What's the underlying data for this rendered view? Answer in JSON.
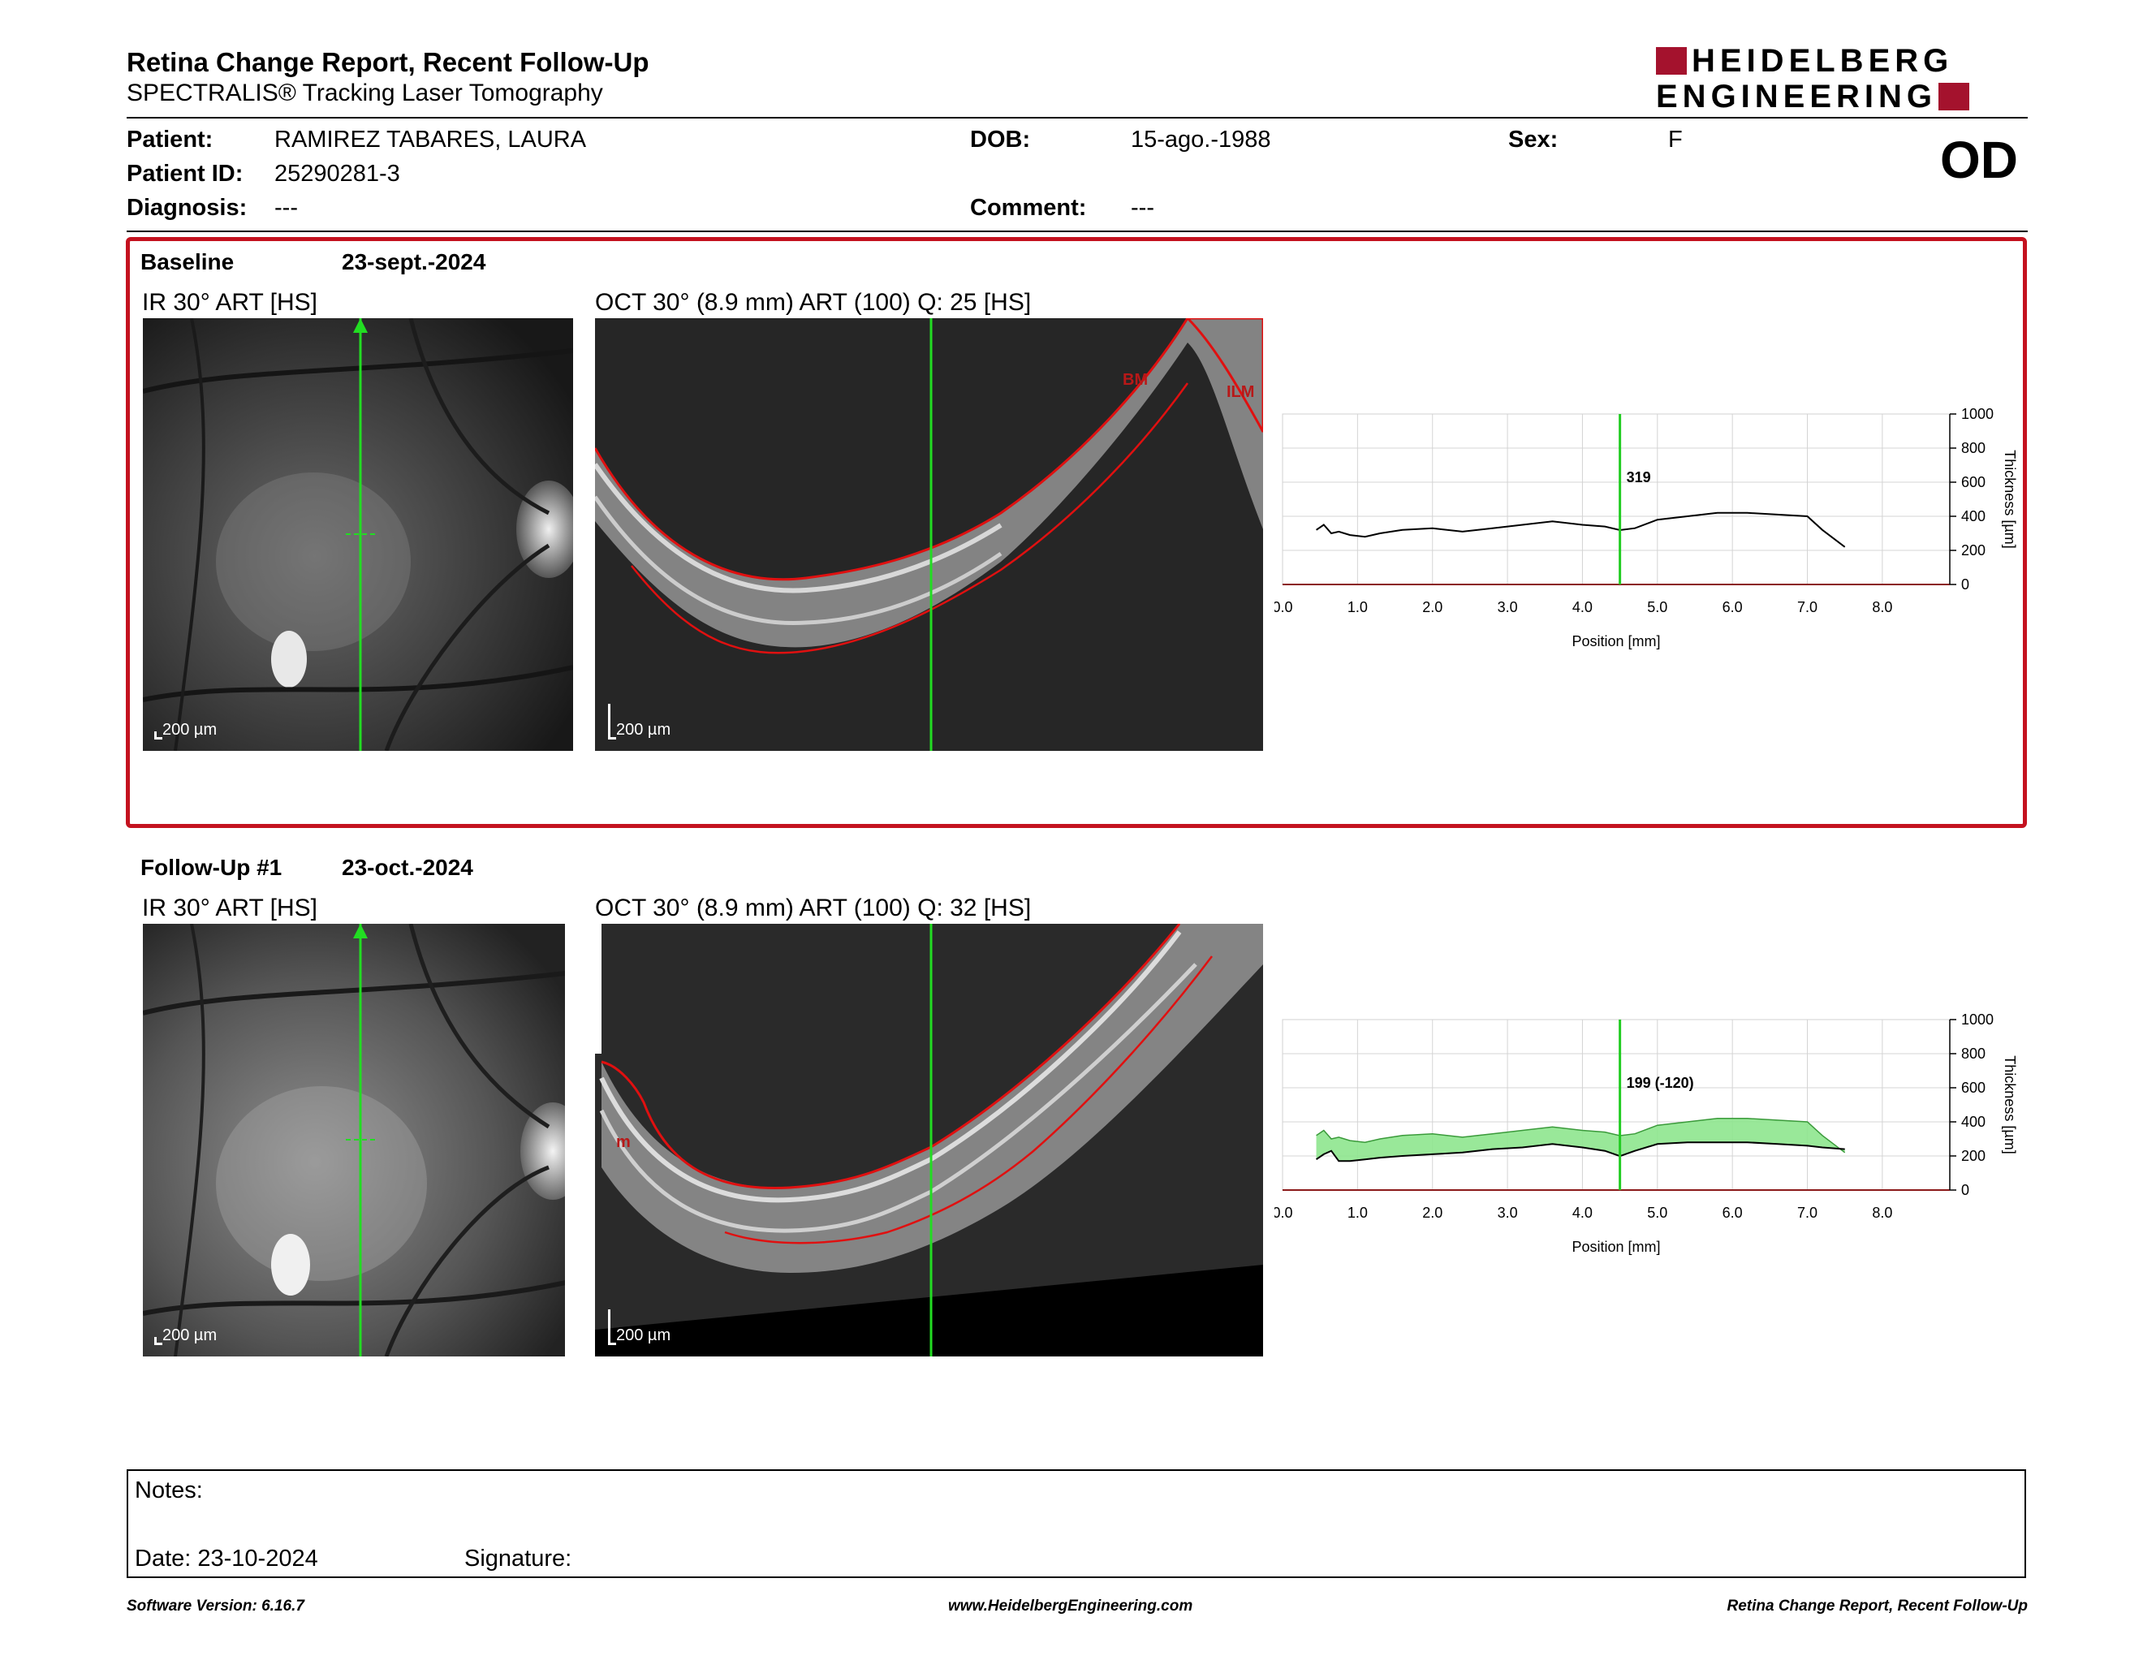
{
  "header": {
    "title": "Retina Change Report, Recent Follow-Up",
    "subtitle": "SPECTRALIS® Tracking Laser Tomography",
    "logo_line1": "HEIDELBERG",
    "logo_line2": "ENGINEERING",
    "eye": "OD"
  },
  "patient": {
    "patient_label": "Patient:",
    "patient_value": "RAMIREZ TABARES, LAURA",
    "id_label": "Patient ID:",
    "id_value": "25290281-3",
    "diagnosis_label": "Diagnosis:",
    "diagnosis_value": "---",
    "dob_label": "DOB:",
    "dob_value": "15-ago.-1988",
    "comment_label": "Comment:",
    "comment_value": "---",
    "sex_label": "Sex:",
    "sex_value": "F"
  },
  "baseline": {
    "label": "Baseline",
    "date": "23-sept.-2024",
    "ir_label": "IR 30° ART [HS]",
    "oct_label": "OCT 30° (8.9 mm) ART (100) Q: 25 [HS]",
    "scale_ir": "200 µm",
    "scale_oct": "200 µm",
    "layer_bm": "BM",
    "layer_ilm": "ILM"
  },
  "followup": {
    "label": "Follow-Up #1",
    "date": "23-oct.-2024",
    "ir_label": "IR 30° ART [HS]",
    "oct_label": "OCT 30° (8.9 mm) ART (100) Q: 32 [HS]",
    "scale_ir": "200 µm",
    "scale_oct": "200 µm",
    "layer_m": "m"
  },
  "chart_data": [
    {
      "type": "line",
      "xlabel": "Position [mm]",
      "ylabel": "Thickness [µm]",
      "xlim": [
        0,
        8.9
      ],
      "ylim": [
        0,
        1000
      ],
      "x_ticks": [
        "0.0",
        "1.0",
        "2.0",
        "3.0",
        "4.0",
        "5.0",
        "6.0",
        "7.0",
        "8.0"
      ],
      "y_ticks": [
        "0",
        "200",
        "400",
        "600",
        "800",
        "1000"
      ],
      "marker_x": 4.5,
      "marker_label": "319",
      "x": [
        0.45,
        0.55,
        0.65,
        0.75,
        0.9,
        1.1,
        1.3,
        1.6,
        2.0,
        2.4,
        2.8,
        3.2,
        3.6,
        4.0,
        4.3,
        4.5,
        4.7,
        5.0,
        5.4,
        5.8,
        6.2,
        6.6,
        7.0,
        7.2,
        7.5
      ],
      "y": [
        320,
        350,
        300,
        310,
        290,
        280,
        300,
        320,
        330,
        310,
        330,
        350,
        370,
        350,
        340,
        319,
        330,
        380,
        400,
        420,
        420,
        410,
        400,
        320,
        220
      ],
      "color": "#000000"
    },
    {
      "type": "area",
      "xlabel": "Position [mm]",
      "ylabel": "Thickness [µm]",
      "xlim": [
        0,
        8.9
      ],
      "ylim": [
        0,
        1000
      ],
      "x_ticks": [
        "0.0",
        "1.0",
        "2.0",
        "3.0",
        "4.0",
        "5.0",
        "6.0",
        "7.0",
        "8.0"
      ],
      "y_ticks": [
        "0",
        "200",
        "400",
        "600",
        "800",
        "1000"
      ],
      "marker_x": 4.5,
      "marker_label": "199 (-120)",
      "x": [
        0.45,
        0.55,
        0.65,
        0.75,
        0.9,
        1.1,
        1.3,
        1.6,
        2.0,
        2.4,
        2.8,
        3.2,
        3.6,
        4.0,
        4.3,
        4.5,
        4.7,
        5.0,
        5.4,
        5.8,
        6.2,
        6.6,
        7.0,
        7.2,
        7.5
      ],
      "series": [
        {
          "values": [
            320,
            350,
            300,
            310,
            290,
            280,
            300,
            320,
            330,
            310,
            330,
            350,
            370,
            350,
            340,
            319,
            330,
            380,
            400,
            420,
            420,
            410,
            400,
            320,
            220
          ]
        },
        {
          "values": [
            180,
            210,
            230,
            170,
            170,
            180,
            190,
            200,
            210,
            220,
            240,
            250,
            270,
            250,
            230,
            199,
            230,
            270,
            280,
            280,
            280,
            270,
            260,
            250,
            240
          ]
        }
      ],
      "fill_color": "#8ee58e",
      "line_color": "#000000"
    }
  ],
  "notes": {
    "notes_label": "Notes:",
    "date_label": "Date: 23-10-2024",
    "signature_label": "Signature:"
  },
  "footer": {
    "software": "Software Version: 6.16.7",
    "website": "www.HeidelbergEngineering.com",
    "report": "Retina Change Report, Recent Follow-Up"
  }
}
